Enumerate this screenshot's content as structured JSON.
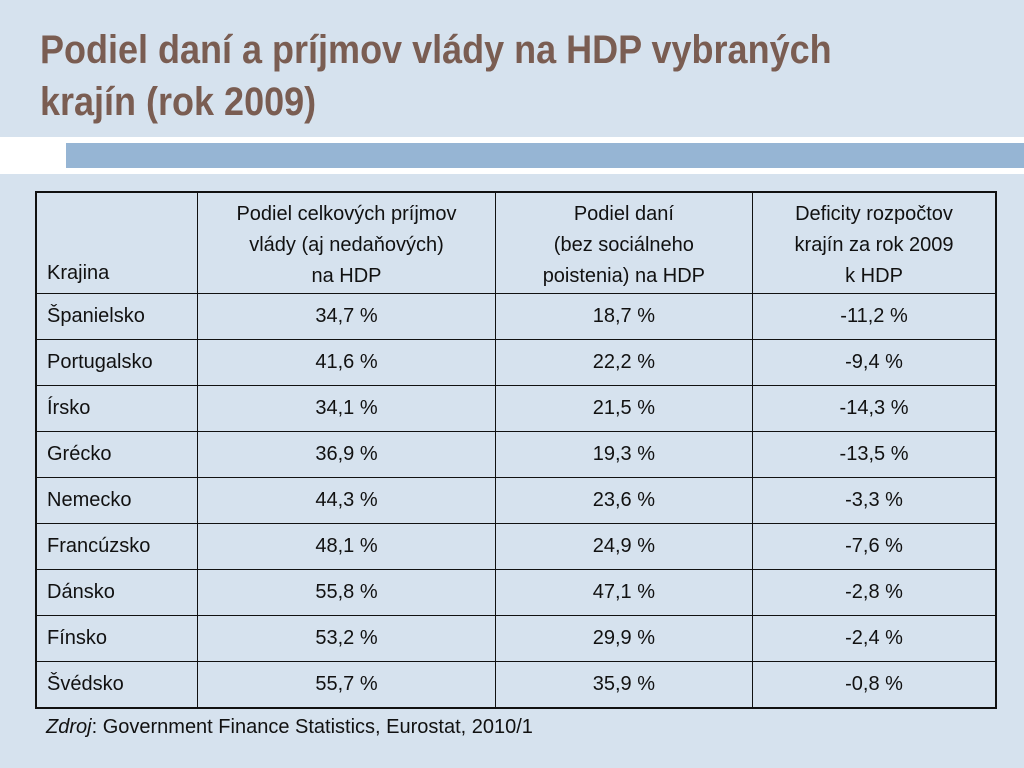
{
  "title": {
    "line1": "Podiel daní a príjmov vlády na HDP vybraných",
    "line2": "krajín (rok 2009)"
  },
  "table": {
    "headers": {
      "country": "Krajina",
      "revenue": [
        "Podiel celkových príjmov",
        "vlády (aj nedaňových)",
        "na HDP"
      ],
      "taxes": [
        "Podiel daní",
        "(bez sociálneho",
        "poistenia) na HDP"
      ],
      "deficit": [
        "Deficity rozpočtov",
        "krajín za rok 2009",
        "k HDP"
      ]
    },
    "rows": [
      {
        "country": "Španielsko",
        "revenue": "34,7 %",
        "taxes": "18,7 %",
        "deficit": "-11,2 %"
      },
      {
        "country": "Portugalsko",
        "revenue": "41,6 %",
        "taxes": "22,2 %",
        "deficit": "-9,4 %"
      },
      {
        "country": "Írsko",
        "revenue": "34,1 %",
        "taxes": "21,5 %",
        "deficit": "-14,3 %"
      },
      {
        "country": "Grécko",
        "revenue": "36,9 %",
        "taxes": "19,3 %",
        "deficit": "-13,5 %"
      },
      {
        "country": "Nemecko",
        "revenue": "44,3 %",
        "taxes": "23,6 %",
        "deficit": "-3,3 %"
      },
      {
        "country": "Francúzsko",
        "revenue": "48,1 %",
        "taxes": "24,9 %",
        "deficit": "-7,6 %"
      },
      {
        "country": "Dánsko",
        "revenue": "55,8 %",
        "taxes": "47,1 %",
        "deficit": "-2,8 %"
      },
      {
        "country": "Fínsko",
        "revenue": "53,2 %",
        "taxes": "29,9 %",
        "deficit": "-2,4 %"
      },
      {
        "country": "Švédsko",
        "revenue": "55,7 %",
        "taxes": "35,9 %",
        "deficit": "-0,8 %"
      }
    ]
  },
  "source": {
    "label": "Zdroj",
    "text": ": Government Finance Statistics, Eurostat, 2010/1"
  },
  "colors": {
    "background": "#d6e2ee",
    "title": "#7a5d52",
    "band": "#96b5d4"
  }
}
